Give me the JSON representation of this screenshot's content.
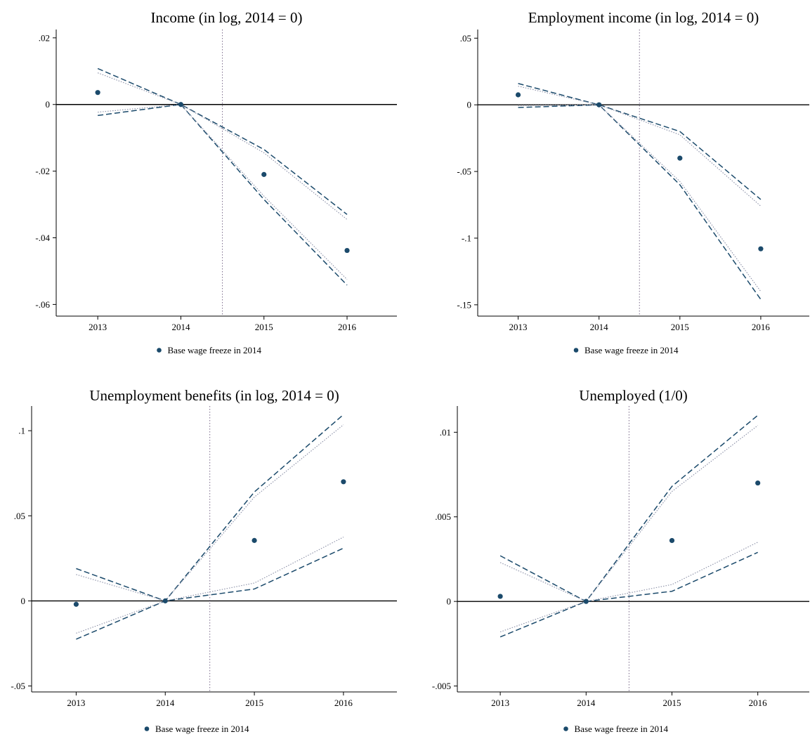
{
  "chart_data": [
    {
      "type": "scatter",
      "title": "Income (in log, 2014 = 0)",
      "x": [
        "2013",
        "2014",
        "2015",
        "2016"
      ],
      "yticks": [
        ".02",
        "0",
        "-.02",
        "-.04",
        "-.06"
      ],
      "ytick_values": [
        0.02,
        0,
        -0.02,
        -0.04,
        -0.06
      ],
      "ylim": [
        -0.0635,
        0.0225
      ],
      "legend": "Base wage freeze in 2014",
      "vline_x": 2014.5,
      "series": [
        {
          "name": "Base wage freeze in 2014",
          "style": "points",
          "values": [
            0.0036,
            0.0,
            -0.021,
            -0.0438
          ]
        },
        {
          "style": "dashed-bound-upper",
          "values": [
            0.0108,
            0.0,
            -0.0135,
            -0.033
          ]
        },
        {
          "style": "dashed-bound-lower",
          "values": [
            -0.0033,
            0.0,
            -0.0285,
            -0.0542
          ]
        },
        {
          "style": "dotted-bound-upper",
          "values": [
            0.0095,
            0.0,
            -0.0145,
            -0.0345
          ]
        },
        {
          "style": "dotted-bound-lower",
          "values": [
            -0.0023,
            0.0,
            -0.0275,
            -0.0525
          ]
        }
      ]
    },
    {
      "type": "scatter",
      "title": "Employment income (in log, 2014 = 0)",
      "x": [
        "2013",
        "2014",
        "2015",
        "2016"
      ],
      "yticks": [
        ".05",
        "0",
        "-.05",
        "-.1",
        "-.15"
      ],
      "ytick_values": [
        0.05,
        0,
        -0.05,
        -0.1,
        -0.15
      ],
      "ylim": [
        -0.1585,
        0.0565
      ],
      "legend": "Base wage freeze in 2014",
      "vline_x": 2014.5,
      "series": [
        {
          "name": "Base wage freeze in 2014",
          "style": "points",
          "values": [
            0.0075,
            0.0,
            -0.04,
            -0.108
          ]
        },
        {
          "style": "dashed-bound-upper",
          "values": [
            0.016,
            0.0,
            -0.02,
            -0.071
          ]
        },
        {
          "style": "dashed-bound-lower",
          "values": [
            -0.002,
            0.0,
            -0.06,
            -0.146
          ]
        },
        {
          "style": "dotted-bound-upper",
          "values": [
            0.014,
            0.0,
            -0.0225,
            -0.076
          ]
        },
        {
          "style": "dotted-bound-lower",
          "values": [
            -0.0005,
            0.0,
            -0.0575,
            -0.14
          ]
        }
      ]
    },
    {
      "type": "scatter",
      "title": "Unemployment benefits (in log, 2014 = 0)",
      "x": [
        "2013",
        "2014",
        "2015",
        "2016"
      ],
      "yticks": [
        ".1",
        ".05",
        "0",
        "-.05"
      ],
      "ytick_values": [
        0.1,
        0.05,
        0,
        -0.05
      ],
      "ylim": [
        -0.0535,
        0.1145
      ],
      "legend": "Base wage freeze in 2014",
      "vline_x": 2014.5,
      "series": [
        {
          "name": "Base wage freeze in 2014",
          "style": "points",
          "values": [
            -0.002,
            0.0,
            0.0355,
            0.07
          ]
        },
        {
          "style": "dashed-bound-upper",
          "values": [
            0.019,
            0.0,
            0.064,
            0.1095
          ]
        },
        {
          "style": "dashed-bound-lower",
          "values": [
            -0.0225,
            0.0,
            0.007,
            0.031
          ]
        },
        {
          "style": "dotted-bound-upper",
          "values": [
            0.0155,
            0.0,
            0.061,
            0.1035
          ]
        },
        {
          "style": "dotted-bound-lower",
          "values": [
            -0.019,
            0.0,
            0.0105,
            0.0375
          ]
        }
      ]
    },
    {
      "type": "scatter",
      "title": "Unemployed (1/0)",
      "x": [
        "2013",
        "2014",
        "2015",
        "2016"
      ],
      "yticks": [
        ".01",
        ".005",
        "0",
        "-.005"
      ],
      "ytick_values": [
        0.01,
        0.005,
        0,
        -0.005
      ],
      "ylim": [
        -0.00535,
        0.01155
      ],
      "legend": "Base wage freeze in 2014",
      "vline_x": 2014.5,
      "series": [
        {
          "name": "Base wage freeze in 2014",
          "style": "points",
          "values": [
            0.0003,
            0.0,
            0.0036,
            0.007
          ]
        },
        {
          "style": "dashed-bound-upper",
          "values": [
            0.0027,
            0.0,
            0.0068,
            0.011
          ]
        },
        {
          "style": "dashed-bound-lower",
          "values": [
            -0.0021,
            0.0,
            0.0006,
            0.0029
          ]
        },
        {
          "style": "dotted-bound-upper",
          "values": [
            0.0023,
            0.0,
            0.0065,
            0.0104
          ]
        },
        {
          "style": "dotted-bound-lower",
          "values": [
            -0.0018,
            0.0,
            0.001,
            0.0035
          ]
        }
      ]
    }
  ],
  "colors": {
    "marker": "#1b4a6b",
    "dashed": "#1b4a6b",
    "dotted": "#8a8fa6",
    "vline": "#7a6a8a",
    "axis": "#000000"
  }
}
